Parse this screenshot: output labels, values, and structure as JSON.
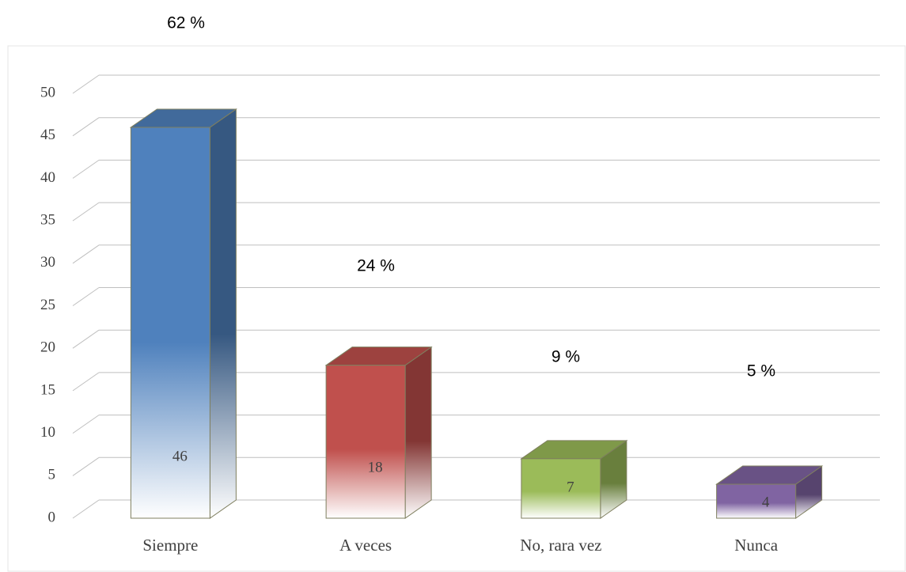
{
  "chart_data": {
    "type": "bar3d",
    "categories": [
      "Siempre",
      "A veces",
      "No, rara vez",
      "Nunca"
    ],
    "values": [
      46,
      18,
      7,
      4
    ],
    "colors": [
      "#4f81bd",
      "#c0504d",
      "#9bbb59",
      "#8064a2"
    ],
    "annotations": [
      "62 %",
      "24 %",
      "9 %",
      "5 %"
    ],
    "ylim": [
      0,
      50
    ],
    "yticks": [
      0,
      5,
      10,
      15,
      20,
      25,
      30,
      35,
      40,
      45,
      50
    ],
    "grid": true
  }
}
